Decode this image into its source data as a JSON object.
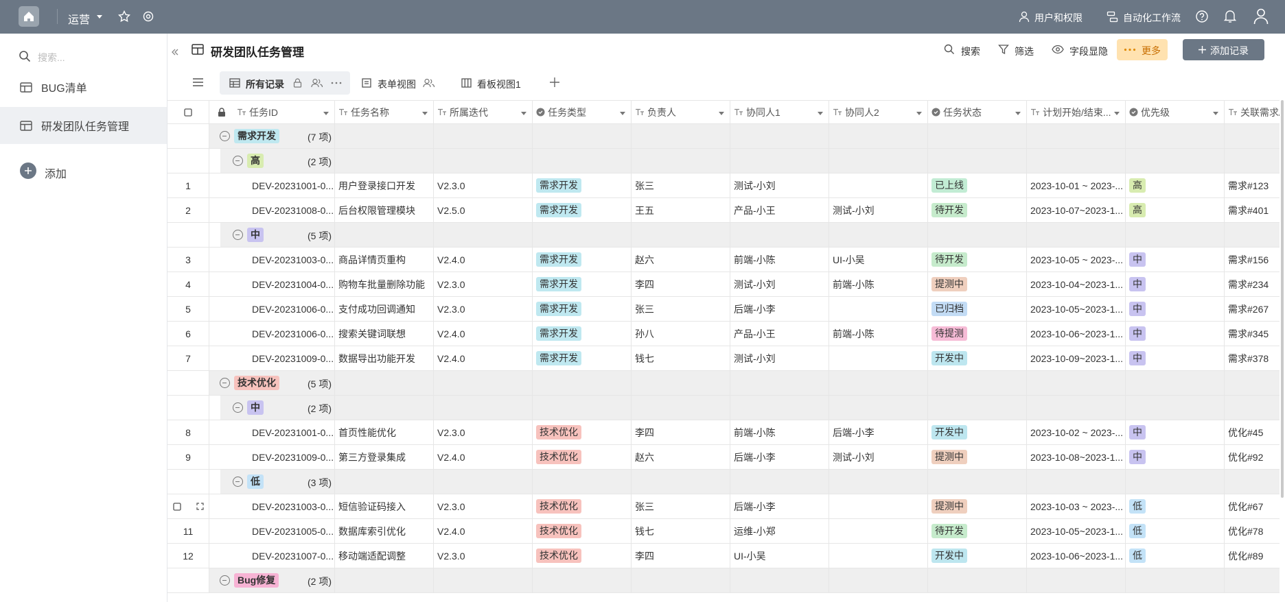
{
  "topbar": {
    "workspace": "运营",
    "links": [
      "用户和权限",
      "自动化工作流"
    ]
  },
  "sidebar": {
    "search_placeholder": "搜索...",
    "items": [
      "BUG清单",
      "研发团队任务管理"
    ],
    "selected": 1,
    "add": "添加"
  },
  "header": {
    "title": "研发团队任务管理",
    "actions": [
      "搜索",
      "筛选",
      "字段显隐",
      "更多"
    ],
    "add_record": "添加记录"
  },
  "views": [
    "所有记录",
    "表单视图",
    "看板视图1"
  ],
  "table": {
    "columns": [
      "任务ID",
      "任务名称",
      "所属迭代",
      "任务类型",
      "负责人",
      "协同人1",
      "协同人2",
      "任务状态",
      "计划开始/结束...",
      "优先级",
      "关联需求/"
    ],
    "select_columns": [
      3,
      7,
      9
    ],
    "tag_colors": {
      "需求开发": "#bfe8f0",
      "技术优化": "#f7c2bd",
      "Bug修复": "#f7b3d4",
      "高": "#d8ecb0",
      "中": "#c8c3f0",
      "低": "#c3e2f7",
      "已上线": "#c2ecd4",
      "待开发": "#c6ebcc",
      "提测中": "#efcfbe",
      "已归档": "#c3dcf5",
      "待提测": "#f6bbd6",
      "开发中": "#bde6ef"
    },
    "rows": [
      {
        "kind": "group",
        "label": "需求开发",
        "count": "(7 项)"
      },
      {
        "kind": "subgroup",
        "label": "高",
        "count": "(2 项)"
      },
      {
        "kind": "record",
        "no": 1,
        "cells": [
          "DEV-20231001-0...",
          "用户登录接口开发",
          "V2.3.0",
          "需求开发",
          "张三",
          "测试-小刘",
          null,
          "已上线",
          "2023-10-01 ~ 2023-...",
          "高",
          "需求#123"
        ]
      },
      {
        "kind": "record",
        "no": 2,
        "cells": [
          "DEV-20231008-0...",
          "后台权限管理模块",
          "V2.5.0",
          "需求开发",
          "王五",
          "产品-小王",
          "测试-小刘",
          "待开发",
          "2023-10-07~2023-1...",
          "高",
          "需求#401"
        ]
      },
      {
        "kind": "subgroup",
        "label": "中",
        "count": "(5 项)"
      },
      {
        "kind": "record",
        "no": 3,
        "cells": [
          "DEV-20231003-0...",
          "商品详情页重构",
          "V2.4.0",
          "需求开发",
          "赵六",
          "前端-小陈",
          "UI-小吴",
          "待开发",
          "2023-10-05 ~ 2023-...",
          "中",
          "需求#156"
        ]
      },
      {
        "kind": "record",
        "no": 4,
        "cells": [
          "DEV-20231004-0...",
          "购物车批量删除功能",
          "V2.3.0",
          "需求开发",
          "李四",
          "测试-小刘",
          "前端-小陈",
          "提测中",
          "2023-10-04~2023-1...",
          "中",
          "需求#234"
        ]
      },
      {
        "kind": "record",
        "no": 5,
        "cells": [
          "DEV-20231006-0...",
          "支付成功回调通知",
          "V2.3.0",
          "需求开发",
          "张三",
          "后端-小李",
          null,
          "已归档",
          "2023-10-05~2023-1...",
          "中",
          "需求#267"
        ]
      },
      {
        "kind": "record",
        "no": 6,
        "cells": [
          "DEV-20231006-0...",
          "搜索关键词联想",
          "V2.4.0",
          "需求开发",
          "孙八",
          "产品-小王",
          "前端-小陈",
          "待提测",
          "2023-10-06~2023-1...",
          "中",
          "需求#345"
        ]
      },
      {
        "kind": "record",
        "no": 7,
        "cells": [
          "DEV-20231009-0...",
          "数据导出功能开发",
          "V2.4.0",
          "需求开发",
          "钱七",
          "测试-小刘",
          null,
          "开发中",
          "2023-10-09~2023-1...",
          "中",
          "需求#378"
        ]
      },
      {
        "kind": "group",
        "label": "技术优化",
        "count": "(5 项)"
      },
      {
        "kind": "subgroup",
        "label": "中",
        "count": "(2 项)"
      },
      {
        "kind": "record",
        "no": 8,
        "cells": [
          "DEV-20231001-0...",
          "首页性能优化",
          "V2.3.0",
          "技术优化",
          "李四",
          "前端-小陈",
          "后端-小李",
          "开发中",
          "2023-10-02 ~ 2023-...",
          "中",
          "优化#45"
        ]
      },
      {
        "kind": "record",
        "no": 9,
        "cells": [
          "DEV-20231009-0...",
          "第三方登录集成",
          "V2.4.0",
          "技术优化",
          "赵六",
          "后端-小李",
          "测试-小刘",
          "提测中",
          "2023-10-08~2023-1...",
          "中",
          "优化#92"
        ]
      },
      {
        "kind": "subgroup",
        "label": "低",
        "count": "(3 项)"
      },
      {
        "kind": "record",
        "cells": [
          "DEV-20231003-0...",
          "短信验证码接入",
          "V2.3.0",
          "技术优化",
          "张三",
          "后端-小李",
          null,
          "提测中",
          "2023-10-03 ~ 2023-...",
          "低",
          "优化#67"
        ]
      },
      {
        "kind": "record",
        "no": 11,
        "cells": [
          "DEV-20231005-0...",
          "数据库索引优化",
          "V2.4.0",
          "技术优化",
          "钱七",
          "运维-小郑",
          null,
          "待开发",
          "2023-10-05~2023-1...",
          "低",
          "优化#78"
        ]
      },
      {
        "kind": "record",
        "no": 12,
        "cells": [
          "DEV-20231007-0...",
          "移动端适配调整",
          "V2.3.0",
          "技术优化",
          "李四",
          "UI-小吴",
          null,
          "开发中",
          "2023-10-06~2023-1...",
          "低",
          "优化#89"
        ]
      },
      {
        "kind": "group",
        "label": "Bug修复",
        "count": "(2 项)"
      }
    ]
  }
}
